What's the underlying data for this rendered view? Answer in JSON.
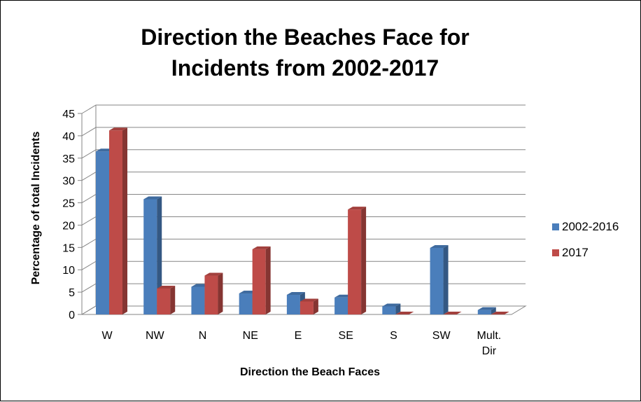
{
  "chart_data": {
    "type": "bar",
    "title_lines": [
      "Direction the Beaches Face for",
      "Incidents from 2002-2017"
    ],
    "xlabel": "Direction the Beach Faces",
    "ylabel": "Percentage of total Incidents",
    "categories": [
      [
        "W"
      ],
      [
        "NW"
      ],
      [
        "N"
      ],
      [
        "NE"
      ],
      [
        "E"
      ],
      [
        "SE"
      ],
      [
        "S"
      ],
      [
        "SW"
      ],
      [
        "Mult.",
        "Dir"
      ]
    ],
    "series": [
      {
        "name": "2002-2016",
        "color": "#4a7ebb",
        "values": [
          36.5,
          25.8,
          6.2,
          4.7,
          4.4,
          3.8,
          1.8,
          14.9,
          1.0
        ]
      },
      {
        "name": "2017",
        "color": "#be4b48",
        "values": [
          41.2,
          5.8,
          8.7,
          14.6,
          2.9,
          23.5,
          0,
          0,
          0
        ]
      }
    ],
    "ylim": [
      0,
      45
    ],
    "yticks": [
      "0",
      "5",
      "10",
      "15",
      "20",
      "25",
      "30",
      "35",
      "40",
      "45"
    ],
    "grid": true,
    "legend_position": "right"
  }
}
